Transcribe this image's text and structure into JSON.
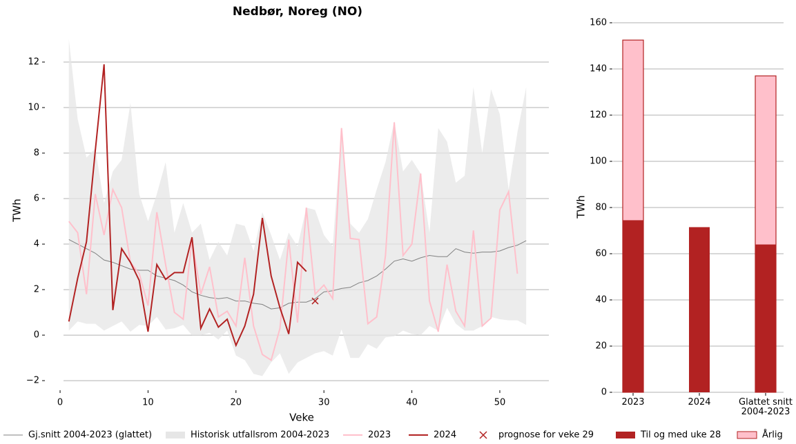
{
  "chart_data": [
    {
      "type": "line",
      "title": "Nedbør, Noreg (NO)",
      "xlabel": "Veke",
      "ylabel": "TWh",
      "xlim": [
        -1,
        56
      ],
      "ylim": [
        -2.3,
        13.1
      ],
      "xticks": [
        0,
        10,
        20,
        30,
        40,
        50
      ],
      "yticks": [
        {
          "value": -2,
          "label": "−2"
        },
        0,
        2,
        4,
        6,
        8,
        10,
        12
      ],
      "grid": true,
      "x": [
        1,
        2,
        3,
        4,
        5,
        6,
        7,
        8,
        9,
        10,
        11,
        12,
        13,
        14,
        15,
        16,
        17,
        18,
        19,
        20,
        21,
        22,
        23,
        24,
        25,
        26,
        27,
        28,
        29,
        30,
        31,
        32,
        33,
        34,
        35,
        36,
        37,
        38,
        39,
        40,
        41,
        42,
        43,
        44,
        45,
        46,
        47,
        48,
        49,
        50,
        51,
        52,
        53
      ],
      "series": [
        {
          "name": "Historisk utfallsrom 2004-2023",
          "type": "band",
          "color": "#e6e6e6",
          "upper": [
            13,
            9.5,
            7.8,
            8.2,
            5.8,
            7.2,
            7.7,
            10.2,
            6.2,
            5,
            6.2,
            7.6,
            4.5,
            5.8,
            4.5,
            4.9,
            3.3,
            4.1,
            3.5,
            4.9,
            4.8,
            3.7,
            5.4,
            4.4,
            3.3,
            4.5,
            3.9,
            5.6,
            5.5,
            4.4,
            3.9,
            9.1,
            4.9,
            4.5,
            5.1,
            6.4,
            7.6,
            9.4,
            7.2,
            7.7,
            7.1,
            4.5,
            9.1,
            8.5,
            6.7,
            7,
            10.9,
            8,
            10.8,
            9.7,
            6.4,
            8.9,
            10.9
          ],
          "lower": [
            0.2,
            0.6,
            0.5,
            0.5,
            0.2,
            0.4,
            0.6,
            0.15,
            0.45,
            0.4,
            0.8,
            0.25,
            0.3,
            0.45,
            0,
            0,
            0.1,
            -0.2,
            0.2,
            -0.9,
            -1.1,
            -1.7,
            -1.8,
            -1.2,
            -0.8,
            -1.7,
            -1.2,
            -1,
            -0.8,
            -0.7,
            -0.9,
            0.25,
            -1,
            -1,
            -0.4,
            -0.6,
            -0.1,
            -0.05,
            0.2,
            0.05,
            0,
            0.4,
            0.2,
            1.2,
            0.5,
            0.2,
            0.2,
            0.4,
            0.8,
            0.7,
            0.65,
            0.65,
            0.45
          ]
        },
        {
          "name": "Gj.snitt 2004-2023 (glattet)",
          "type": "line",
          "color": "#808080",
          "width": 1,
          "values": [
            4.2,
            4.0,
            3.8,
            3.6,
            3.3,
            3.2,
            3.05,
            2.9,
            2.85,
            2.85,
            2.6,
            2.5,
            2.4,
            2.2,
            1.9,
            1.75,
            1.65,
            1.6,
            1.65,
            1.5,
            1.5,
            1.4,
            1.35,
            1.15,
            1.2,
            1.4,
            1.45,
            1.45,
            1.6,
            1.9,
            1.95,
            2.05,
            2.1,
            2.3,
            2.4,
            2.6,
            2.9,
            3.25,
            3.35,
            3.25,
            3.4,
            3.5,
            3.45,
            3.45,
            3.8,
            3.65,
            3.6,
            3.65,
            3.65,
            3.7,
            3.85,
            3.95,
            4.15
          ]
        },
        {
          "name": "2023",
          "type": "line",
          "color": "#ffc0cb",
          "width": 2,
          "values": [
            5,
            4.5,
            1.8,
            6.2,
            4.4,
            6.4,
            5.6,
            3.2,
            2.7,
            1.3,
            5.4,
            3.1,
            1,
            0.7,
            4.2,
            1.8,
            3,
            0.8,
            1.05,
            0.4,
            3.4,
            0.4,
            -0.85,
            -1.1,
            0.3,
            4.2,
            0.55,
            5.6,
            1.8,
            2.2,
            1.6,
            9.1,
            4.25,
            4.2,
            0.5,
            0.8,
            3.5,
            9.35,
            3.5,
            4,
            7.1,
            1.5,
            0.15,
            3.1,
            1.05,
            0.4,
            4.6,
            0.4,
            0.75,
            5.5,
            6.3,
            2.7,
            null
          ]
        },
        {
          "name": "2024",
          "type": "line",
          "color": "#b22222",
          "width": 2,
          "values": [
            0.6,
            2.5,
            4.1,
            8.1,
            11.9,
            1.1,
            3.8,
            3.2,
            2.4,
            0.15,
            3.1,
            2.45,
            2.75,
            2.75,
            4.3,
            0.3,
            1.15,
            0.35,
            0.7,
            -0.45,
            0.4,
            1.8,
            5.15,
            2.6,
            1.2,
            0.05,
            3.2,
            2.8,
            null,
            null,
            null,
            null,
            null,
            null,
            null,
            null,
            null,
            null,
            null,
            null,
            null,
            null,
            null,
            null,
            null,
            null,
            null,
            null,
            null,
            null,
            null,
            null,
            null
          ]
        },
        {
          "name": "prognose for veke 29",
          "type": "marker",
          "color": "#b22222",
          "x": [
            29
          ],
          "values": [
            1.5
          ]
        }
      ]
    },
    {
      "type": "bar",
      "ylabel": "TWh",
      "ylim": [
        0,
        160
      ],
      "yticks": [
        0,
        20,
        40,
        60,
        80,
        100,
        120,
        140,
        160
      ],
      "grid": true,
      "categories": [
        "2023",
        "2024",
        "Glattet snitt\n2004-2023"
      ],
      "series": [
        {
          "name": "Årlig",
          "color": "#ffc0cb",
          "edgecolor": "#b22222",
          "values": [
            152.5,
            null,
            137
          ]
        },
        {
          "name": "Til og med uke 28",
          "color": "#b22222",
          "values": [
            74.5,
            71.5,
            64
          ]
        }
      ]
    }
  ]
}
